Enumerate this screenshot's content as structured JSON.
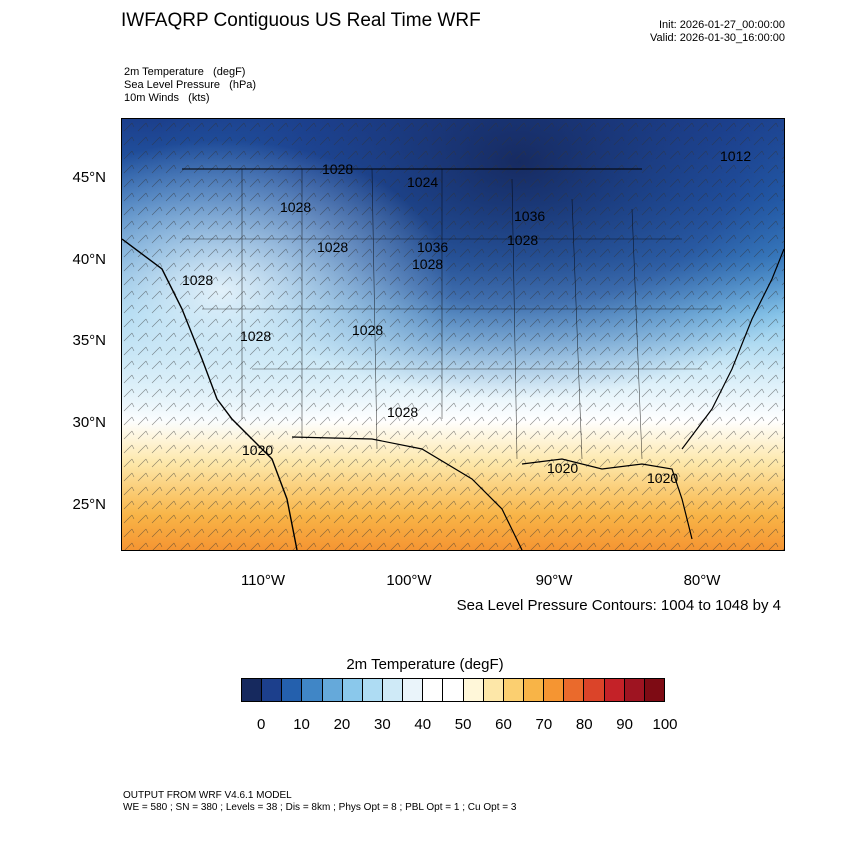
{
  "header": {
    "title": "IWFAQRP Contiguous US Real Time WRF",
    "init": "Init: 2026-01-27_00:00:00",
    "valid": "Valid: 2026-01-30_16:00:00"
  },
  "fields": [
    "2m Temperature   (degF)",
    "Sea Level Pressure   (hPa)",
    "10m Winds   (kts)"
  ],
  "axes": {
    "lat_labels": [
      "45°N",
      "40°N",
      "35°N",
      "30°N",
      "25°N"
    ],
    "lon_labels": [
      "110°W",
      "100°W",
      "90°W",
      "80°W"
    ]
  },
  "pressure_labels": [
    "1028",
    "1024",
    "1012",
    "1028",
    "1028",
    "1036",
    "1036",
    "1028",
    "1028",
    "1028",
    "1028",
    "1028",
    "1028",
    "1020",
    "1020",
    "1020"
  ],
  "contour_note": "Sea Level Pressure Contours: 1004 to 1048 by 4",
  "colorbar": {
    "title": "2m Temperature  (degF)",
    "colors": [
      "#16295e",
      "#1c3f8c",
      "#2460ad",
      "#4086c6",
      "#65a9da",
      "#8ac8eb",
      "#aedcf3",
      "#cfeaf7",
      "#eaf4fa",
      "#ffffff",
      "#ffffff",
      "#fff7d9",
      "#fde7a8",
      "#fbcf70",
      "#f8b447",
      "#f59532",
      "#ea6a2c",
      "#db4429",
      "#c42228",
      "#9e1421",
      "#7e0b14"
    ],
    "labels": [
      "0",
      "10",
      "20",
      "30",
      "40",
      "50",
      "60",
      "70",
      "80",
      "90",
      "100"
    ]
  },
  "footer": {
    "line1": "OUTPUT FROM WRF V4.6.1 MODEL",
    "line2": "WE = 580 ; SN = 380 ; Levels = 38 ; Dis = 8km ; Phys Opt = 8 ; PBL Opt = 1 ; Cu Opt = 3"
  }
}
